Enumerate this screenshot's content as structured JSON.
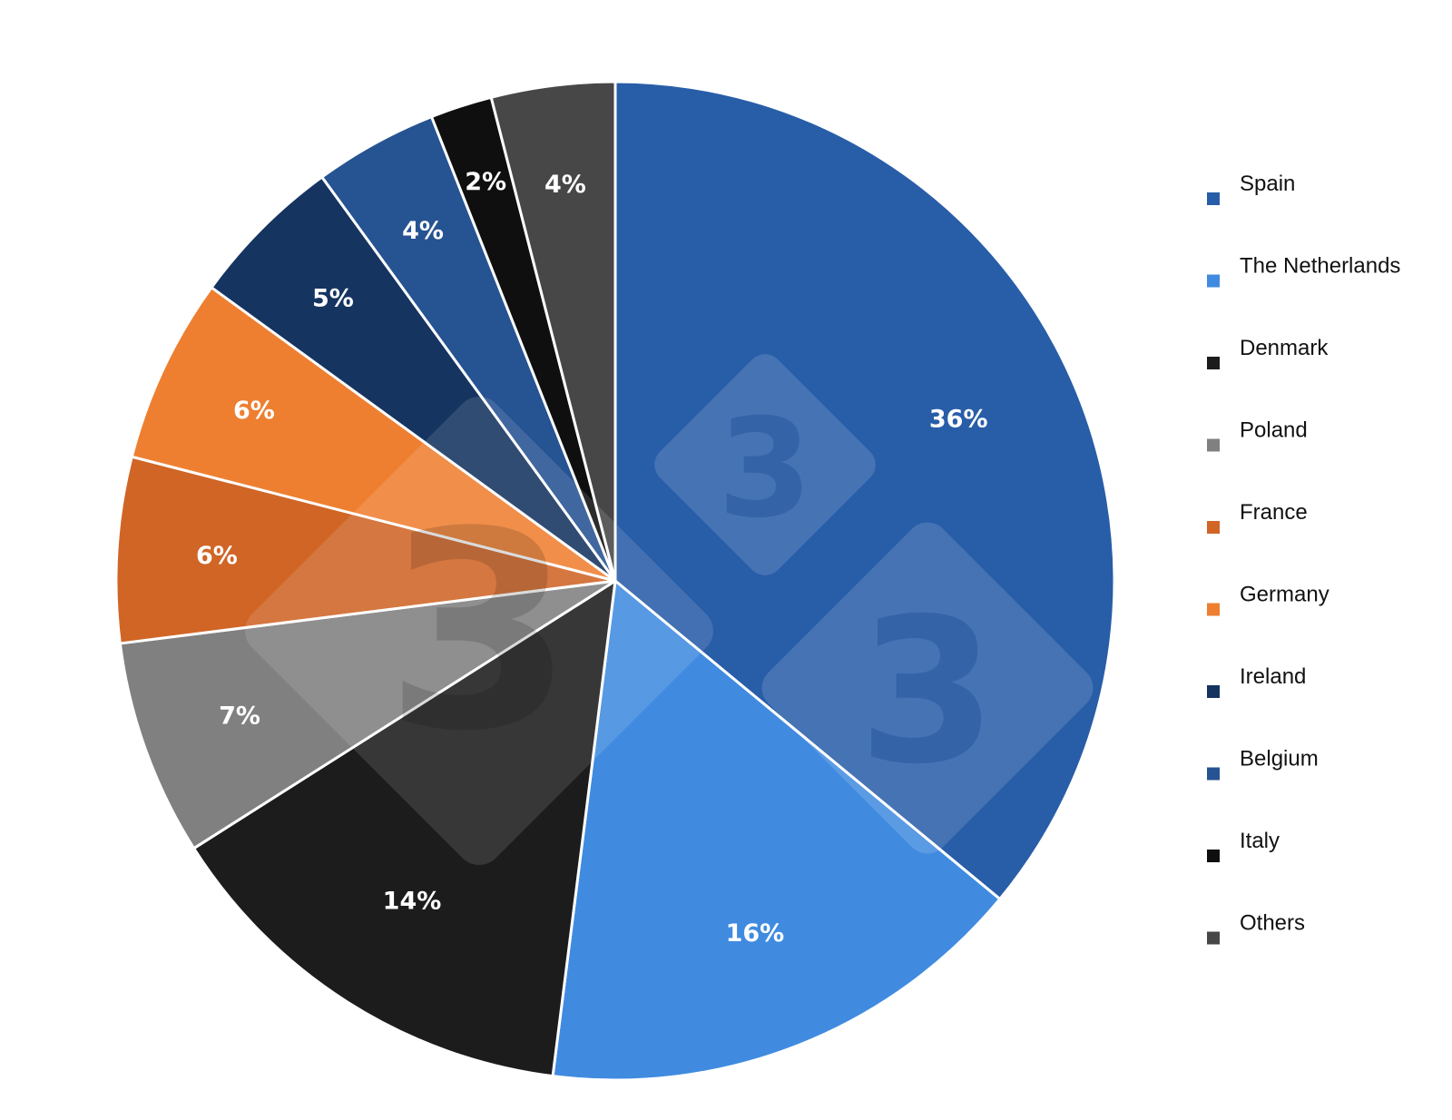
{
  "chart_data": {
    "type": "pie",
    "slices": [
      {
        "name": "Spain",
        "value": 36,
        "label": "36%",
        "color": "#285DA8"
      },
      {
        "name": "The Netherlands",
        "value": 16,
        "label": "16%",
        "color": "#408BE0"
      },
      {
        "name": "Denmark",
        "value": 14,
        "label": "14%",
        "color": "#1C1C1C"
      },
      {
        "name": "Poland",
        "value": 7,
        "label": "7%",
        "color": "#808080"
      },
      {
        "name": "France",
        "value": 6,
        "label": "6%",
        "color": "#D06526"
      },
      {
        "name": "Germany",
        "value": 6,
        "label": "6%",
        "color": "#EE7F31"
      },
      {
        "name": "Ireland",
        "value": 5,
        "label": "5%",
        "color": "#153460"
      },
      {
        "name": "Belgium",
        "value": 4,
        "label": "4%",
        "color": "#265392"
      },
      {
        "name": "Italy",
        "value": 2,
        "label": "2%",
        "color": "#0F0F0F"
      },
      {
        "name": "Others",
        "value": 4,
        "label": "4%",
        "color": "#474747"
      }
    ],
    "legend_position": "right"
  }
}
